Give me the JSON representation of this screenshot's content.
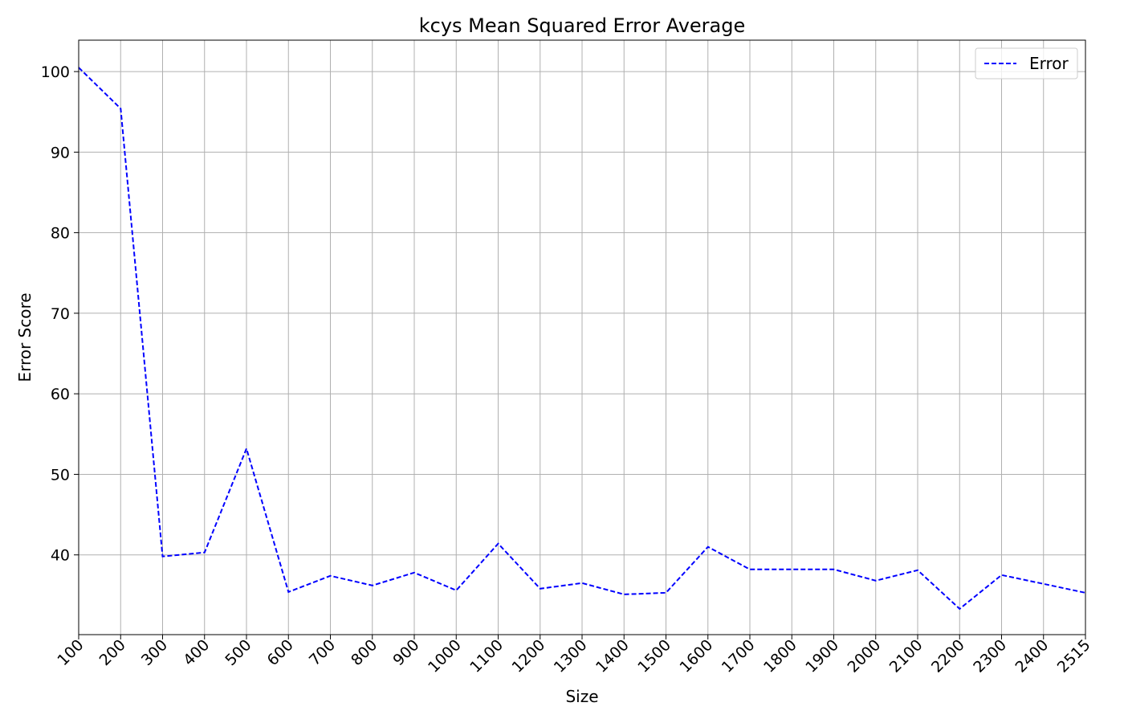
{
  "chart_data": {
    "type": "line",
    "title": "kcys Mean Squared Error Average",
    "xlabel": "Size",
    "ylabel": "Error Score",
    "x_ticks": [
      "100",
      "200",
      "300",
      "400",
      "500",
      "600",
      "700",
      "800",
      "900",
      "1000",
      "1100",
      "1200",
      "1300",
      "1400",
      "1500",
      "1600",
      "1700",
      "1800",
      "1900",
      "2000",
      "2100",
      "2200",
      "2300",
      "2400",
      "2515"
    ],
    "y_ticks": [
      40,
      50,
      60,
      70,
      80,
      90,
      100
    ],
    "ylim": [
      30.1,
      103.9
    ],
    "grid": true,
    "legend_position": "top-right",
    "series": [
      {
        "name": "Error",
        "color": "#0000ff",
        "line_style": "dashed",
        "values": [
          100.5,
          95.4,
          39.8,
          40.3,
          53.2,
          35.4,
          37.4,
          36.2,
          37.8,
          35.6,
          41.4,
          35.8,
          36.5,
          35.1,
          35.3,
          41.0,
          38.2,
          38.2,
          38.2,
          36.8,
          38.1,
          33.3,
          37.5,
          36.4,
          35.3
        ]
      }
    ]
  }
}
